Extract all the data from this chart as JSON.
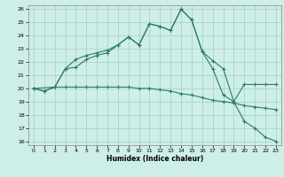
{
  "xlabel": "Humidex (Indice chaleur)",
  "bg_color": "#ceeee8",
  "grid_color": "#aaccc6",
  "line_color": "#2a7a6a",
  "xlim": [
    -0.5,
    23.5
  ],
  "ylim": [
    15.7,
    26.3
  ],
  "xticks": [
    0,
    1,
    2,
    3,
    4,
    5,
    6,
    7,
    8,
    9,
    10,
    11,
    12,
    13,
    14,
    15,
    16,
    17,
    18,
    19,
    20,
    21,
    22,
    23
  ],
  "yticks": [
    16,
    17,
    18,
    19,
    20,
    21,
    22,
    23,
    24,
    25,
    26
  ],
  "line1_x": [
    0,
    1,
    2,
    3,
    4,
    5,
    6,
    7,
    8,
    9,
    10,
    11,
    12,
    13,
    14,
    15,
    16,
    17,
    18,
    19,
    20,
    21,
    22,
    23
  ],
  "line1_y": [
    20.0,
    19.8,
    20.1,
    21.5,
    21.6,
    22.2,
    22.5,
    22.7,
    23.3,
    23.9,
    23.3,
    24.9,
    24.7,
    24.4,
    26.0,
    25.2,
    22.8,
    22.1,
    21.5,
    19.0,
    20.3,
    20.3,
    20.3,
    20.3
  ],
  "line2_x": [
    0,
    1,
    2,
    3,
    4,
    5,
    6,
    7,
    8,
    9,
    10,
    11,
    12,
    13,
    14,
    15,
    16,
    17,
    18,
    19,
    20,
    21,
    22,
    23
  ],
  "line2_y": [
    20.0,
    19.8,
    20.1,
    20.1,
    20.1,
    20.1,
    20.1,
    20.1,
    20.1,
    20.1,
    20.0,
    20.0,
    19.9,
    19.8,
    19.6,
    19.5,
    19.3,
    19.1,
    19.0,
    18.9,
    18.7,
    18.6,
    18.5,
    18.4
  ],
  "line3_x": [
    0,
    2,
    3,
    4,
    5,
    6,
    7,
    8,
    9,
    10,
    11,
    12,
    13,
    14,
    15,
    16,
    17,
    18,
    19,
    20,
    21,
    22,
    23
  ],
  "line3_y": [
    20.0,
    20.1,
    21.5,
    22.2,
    22.5,
    22.7,
    22.9,
    23.3,
    23.9,
    23.3,
    24.9,
    24.7,
    24.4,
    26.0,
    25.2,
    22.8,
    21.5,
    19.5,
    19.0,
    17.5,
    17.0,
    16.3,
    16.0
  ]
}
